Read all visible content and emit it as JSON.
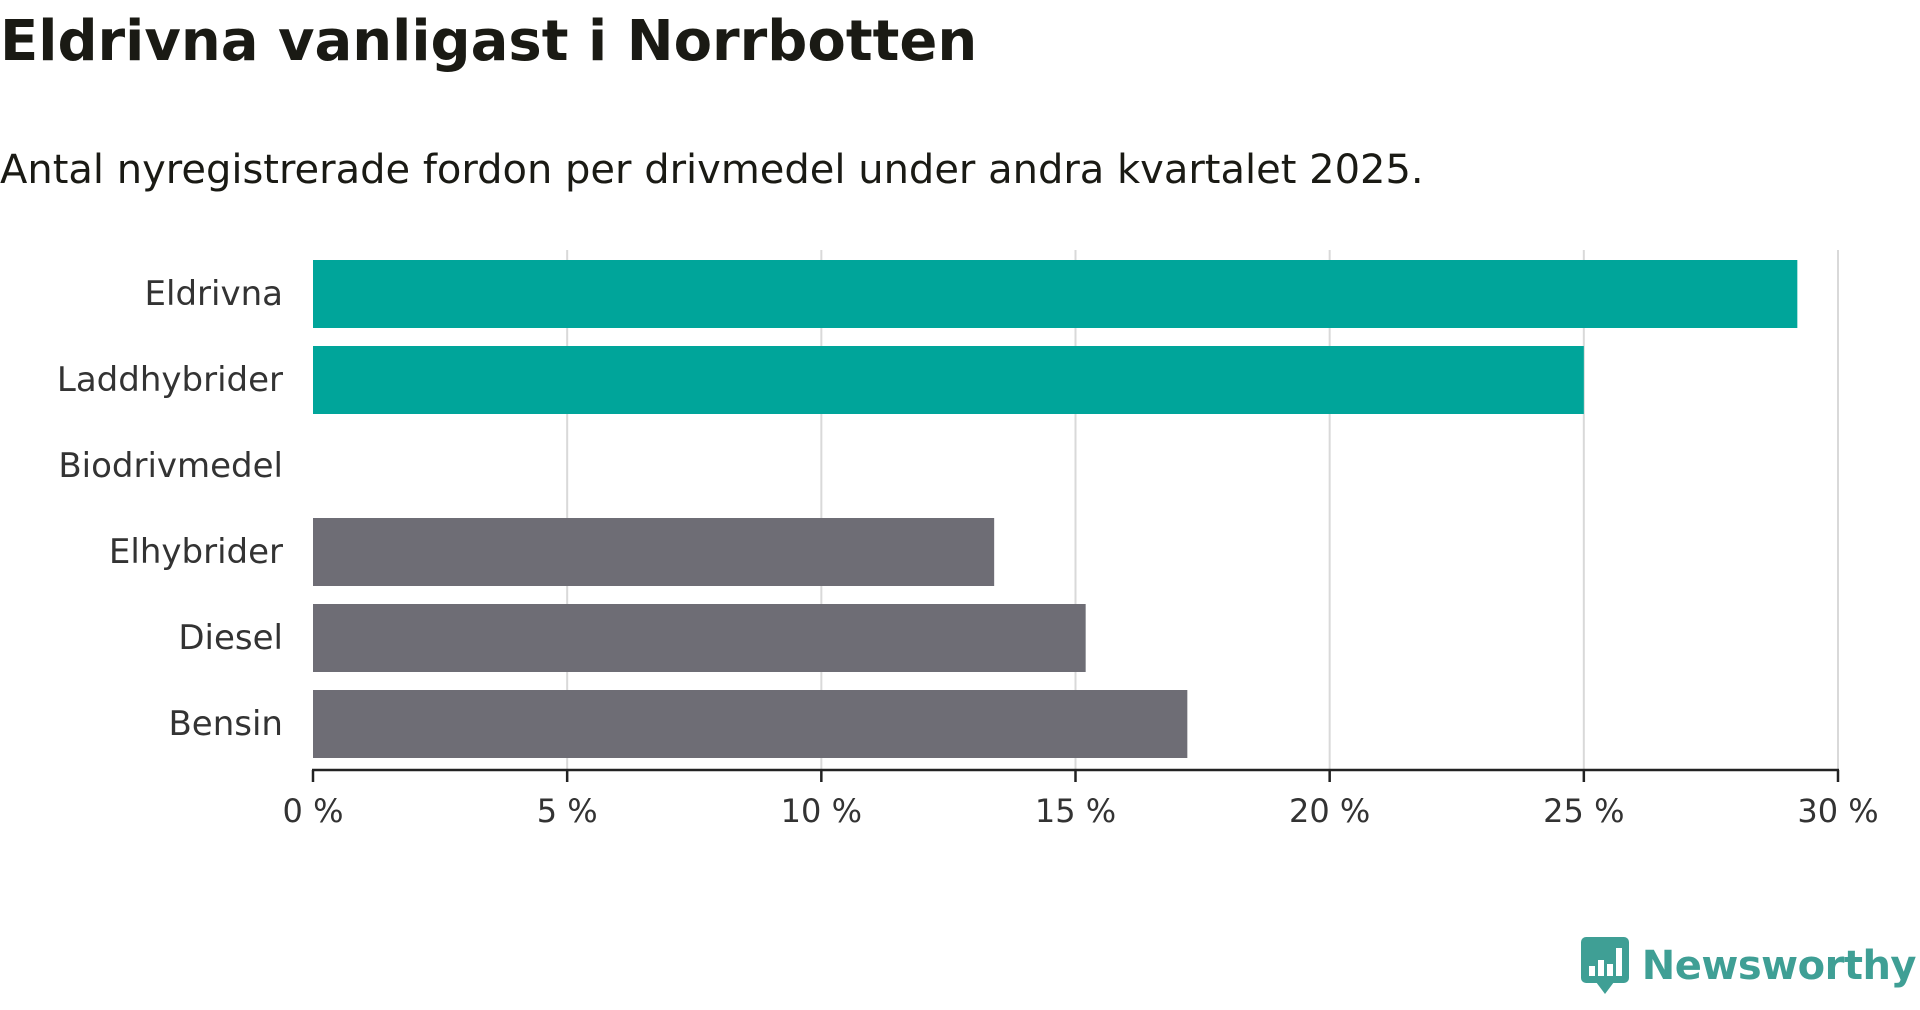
{
  "header": {
    "title": "Eldrivna vanligast i Norrbotten",
    "subtitle": "Antal nyregistrerade fordon per drivmedel under andra kvartalet 2025."
  },
  "brand": {
    "name": "Newsworthy",
    "icon": "bar-chart-speech-bubble-icon",
    "color": "#3f9f95"
  },
  "colors": {
    "highlight": "#00a59a",
    "default": "#6e6d75",
    "grid": "#d9d9d9",
    "axis": "#222222"
  },
  "chart_data": {
    "type": "bar",
    "orientation": "horizontal",
    "title": "Eldrivna vanligast i Norrbotten",
    "subtitle": "Antal nyregistrerade fordon per drivmedel under andra kvartalet 2025.",
    "xlabel": "",
    "ylabel": "",
    "categories": [
      "Eldrivna",
      "Laddhybrider",
      "Biodrivmedel",
      "Elhybrider",
      "Diesel",
      "Bensin"
    ],
    "values": [
      29.2,
      25.0,
      0,
      13.4,
      15.2,
      17.2
    ],
    "highlighted": [
      true,
      true,
      false,
      false,
      false,
      false
    ],
    "xlim": [
      0,
      30
    ],
    "xticks": [
      0,
      5,
      10,
      15,
      20,
      25,
      30
    ],
    "tick_labels": [
      "0 %",
      "5 %",
      "10 %",
      "15 %",
      "20 %",
      "25 %",
      "30 %"
    ],
    "grid": true,
    "legend": "none"
  }
}
